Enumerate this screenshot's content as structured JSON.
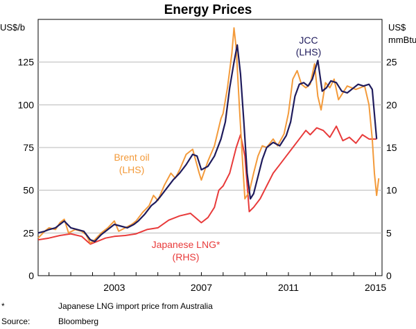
{
  "chart_data": {
    "type": "line",
    "title": "Energy Prices",
    "left_axis": {
      "unit": "US$/b",
      "ylim": [
        0,
        150
      ],
      "ticks": [
        0,
        25,
        50,
        75,
        100,
        125
      ]
    },
    "right_axis": {
      "unit_line1": "US$",
      "unit_line2": "mmBtu",
      "ylim": [
        0,
        30
      ],
      "ticks": [
        0,
        5,
        10,
        15,
        20,
        25
      ]
    },
    "x_axis": {
      "range": [
        1999.5,
        2015.3
      ],
      "tick_labels": [
        "2003",
        "2007",
        "2011",
        "2015"
      ],
      "tick_values": [
        2003,
        2007,
        2011,
        2015
      ]
    },
    "series": [
      {
        "name": "Brent oil",
        "axis": "LHS",
        "label": "Brent oil",
        "axis_note": "(LHS)",
        "color": "#f39a3a",
        "points": [
          [
            1999.5,
            22
          ],
          [
            1999.8,
            26
          ],
          [
            2000.0,
            28
          ],
          [
            2000.3,
            27
          ],
          [
            2000.5,
            31
          ],
          [
            2000.7,
            33
          ],
          [
            2000.9,
            25
          ],
          [
            2001.2,
            27
          ],
          [
            2001.5,
            26
          ],
          [
            2001.7,
            24
          ],
          [
            2001.9,
            19
          ],
          [
            2002.1,
            21
          ],
          [
            2002.4,
            25
          ],
          [
            2002.7,
            28
          ],
          [
            2003.0,
            32
          ],
          [
            2003.2,
            26
          ],
          [
            2003.5,
            28
          ],
          [
            2003.8,
            30
          ],
          [
            2004.0,
            32
          ],
          [
            2004.3,
            37
          ],
          [
            2004.6,
            41
          ],
          [
            2004.8,
            47
          ],
          [
            2005.0,
            44
          ],
          [
            2005.3,
            53
          ],
          [
            2005.6,
            60
          ],
          [
            2005.8,
            57
          ],
          [
            2006.0,
            62
          ],
          [
            2006.3,
            71
          ],
          [
            2006.6,
            74
          ],
          [
            2006.9,
            60
          ],
          [
            2007.0,
            56
          ],
          [
            2007.3,
            67
          ],
          [
            2007.6,
            76
          ],
          [
            2007.9,
            92
          ],
          [
            2008.0,
            95
          ],
          [
            2008.2,
            110
          ],
          [
            2008.4,
            130
          ],
          [
            2008.5,
            145
          ],
          [
            2008.6,
            133
          ],
          [
            2008.75,
            98
          ],
          [
            2008.9,
            65
          ],
          [
            2009.0,
            45
          ],
          [
            2009.2,
            49
          ],
          [
            2009.4,
            60
          ],
          [
            2009.6,
            70
          ],
          [
            2009.8,
            76
          ],
          [
            2010.0,
            75
          ],
          [
            2010.3,
            80
          ],
          [
            2010.5,
            76
          ],
          [
            2010.8,
            83
          ],
          [
            2011.0,
            95
          ],
          [
            2011.2,
            115
          ],
          [
            2011.4,
            120
          ],
          [
            2011.6,
            112
          ],
          [
            2011.8,
            110
          ],
          [
            2012.0,
            112
          ],
          [
            2012.2,
            124
          ],
          [
            2012.35,
            105
          ],
          [
            2012.5,
            97
          ],
          [
            2012.7,
            113
          ],
          [
            2012.9,
            110
          ],
          [
            2013.1,
            115
          ],
          [
            2013.3,
            103
          ],
          [
            2013.5,
            107
          ],
          [
            2013.7,
            111
          ],
          [
            2013.9,
            110
          ],
          [
            2014.1,
            109
          ],
          [
            2014.3,
            110
          ],
          [
            2014.5,
            111
          ],
          [
            2014.7,
            100
          ],
          [
            2014.85,
            80
          ],
          [
            2014.95,
            60
          ],
          [
            2015.05,
            47
          ],
          [
            2015.15,
            57
          ]
        ]
      },
      {
        "name": "JCC",
        "axis": "LHS",
        "label": "JCC",
        "axis_note": "(LHS)",
        "color": "#1f1b5c",
        "points": [
          [
            1999.5,
            25
          ],
          [
            1999.8,
            26
          ],
          [
            2000.0,
            27
          ],
          [
            2000.3,
            28
          ],
          [
            2000.5,
            30
          ],
          [
            2000.7,
            32
          ],
          [
            2001.0,
            28
          ],
          [
            2001.3,
            27
          ],
          [
            2001.6,
            26
          ],
          [
            2001.9,
            21
          ],
          [
            2002.1,
            20
          ],
          [
            2002.4,
            24
          ],
          [
            2002.7,
            27
          ],
          [
            2003.0,
            30
          ],
          [
            2003.3,
            29
          ],
          [
            2003.6,
            28
          ],
          [
            2003.9,
            30
          ],
          [
            2004.1,
            32
          ],
          [
            2004.4,
            36
          ],
          [
            2004.7,
            41
          ],
          [
            2004.9,
            43
          ],
          [
            2005.1,
            46
          ],
          [
            2005.4,
            51
          ],
          [
            2005.7,
            56
          ],
          [
            2006.0,
            60
          ],
          [
            2006.3,
            65
          ],
          [
            2006.6,
            71
          ],
          [
            2006.8,
            70
          ],
          [
            2007.0,
            62
          ],
          [
            2007.3,
            64
          ],
          [
            2007.6,
            70
          ],
          [
            2007.9,
            80
          ],
          [
            2008.1,
            90
          ],
          [
            2008.3,
            110
          ],
          [
            2008.5,
            125
          ],
          [
            2008.65,
            135
          ],
          [
            2008.8,
            118
          ],
          [
            2008.95,
            90
          ],
          [
            2009.1,
            60
          ],
          [
            2009.25,
            45
          ],
          [
            2009.4,
            48
          ],
          [
            2009.6,
            58
          ],
          [
            2009.8,
            68
          ],
          [
            2010.0,
            75
          ],
          [
            2010.3,
            78
          ],
          [
            2010.6,
            76
          ],
          [
            2010.9,
            82
          ],
          [
            2011.1,
            90
          ],
          [
            2011.3,
            105
          ],
          [
            2011.5,
            112
          ],
          [
            2011.7,
            113
          ],
          [
            2011.9,
            111
          ],
          [
            2012.1,
            115
          ],
          [
            2012.35,
            126
          ],
          [
            2012.55,
            108
          ],
          [
            2012.75,
            110
          ],
          [
            2012.95,
            114
          ],
          [
            2013.2,
            113
          ],
          [
            2013.45,
            108
          ],
          [
            2013.7,
            107
          ],
          [
            2013.9,
            109
          ],
          [
            2014.2,
            112
          ],
          [
            2014.45,
            111
          ],
          [
            2014.7,
            112
          ],
          [
            2014.85,
            109
          ],
          [
            2015.05,
            80
          ]
        ]
      },
      {
        "name": "Japanese LNG*",
        "axis": "RHS",
        "label": "Japanese LNG*",
        "axis_note": "(RHS)",
        "color": "#e83a3a",
        "points": [
          [
            1999.5,
            4.2
          ],
          [
            2000.0,
            4.4
          ],
          [
            2000.5,
            4.7
          ],
          [
            2001.0,
            4.9
          ],
          [
            2001.5,
            4.6
          ],
          [
            2001.9,
            3.7
          ],
          [
            2002.2,
            4.0
          ],
          [
            2002.6,
            4.4
          ],
          [
            2003.0,
            4.6
          ],
          [
            2003.5,
            4.7
          ],
          [
            2004.0,
            4.9
          ],
          [
            2004.5,
            5.4
          ],
          [
            2005.0,
            5.6
          ],
          [
            2005.5,
            6.5
          ],
          [
            2006.0,
            7.0
          ],
          [
            2006.5,
            7.3
          ],
          [
            2007.0,
            6.2
          ],
          [
            2007.3,
            6.8
          ],
          [
            2007.6,
            8.0
          ],
          [
            2007.8,
            10.0
          ],
          [
            2008.0,
            10.5
          ],
          [
            2008.3,
            12.0
          ],
          [
            2008.6,
            15.0
          ],
          [
            2008.8,
            16.5
          ],
          [
            2009.0,
            14.0
          ],
          [
            2009.2,
            7.5
          ],
          [
            2009.4,
            8.0
          ],
          [
            2009.7,
            9.0
          ],
          [
            2010.0,
            10.5
          ],
          [
            2010.3,
            12.0
          ],
          [
            2010.6,
            13.0
          ],
          [
            2010.9,
            14.0
          ],
          [
            2011.2,
            15.0
          ],
          [
            2011.5,
            16.0
          ],
          [
            2011.8,
            17.0
          ],
          [
            2012.0,
            16.5
          ],
          [
            2012.3,
            17.3
          ],
          [
            2012.6,
            17.0
          ],
          [
            2012.9,
            16.2
          ],
          [
            2013.2,
            17.5
          ],
          [
            2013.5,
            15.8
          ],
          [
            2013.8,
            16.2
          ],
          [
            2014.1,
            15.5
          ],
          [
            2014.4,
            16.5
          ],
          [
            2014.7,
            16.0
          ],
          [
            2015.05,
            16.0
          ]
        ]
      }
    ],
    "footnote_mark": "*",
    "footnote_text": "Japanese LNG import price from Australia",
    "source_label": "Source:",
    "source_text": "Bloomberg"
  }
}
